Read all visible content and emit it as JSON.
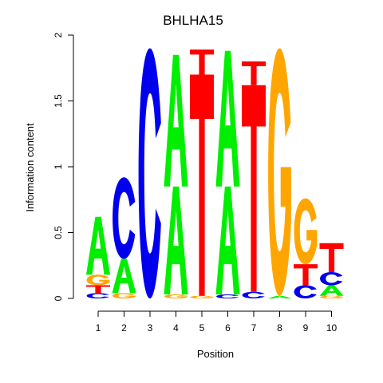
{
  "chart_data": {
    "type": "sequence-logo",
    "title": "BHLHA15",
    "xlabel": "Position",
    "ylabel": "Information content",
    "ylim": [
      0,
      2
    ],
    "y_ticks": [
      "0",
      "0.5",
      "1",
      "1.5",
      "2"
    ],
    "positions": [
      "1",
      "2",
      "3",
      "4",
      "5",
      "6",
      "7",
      "8",
      "9",
      "10"
    ],
    "colors": {
      "A": "#00ee00",
      "C": "#0000ee",
      "G": "#ffa500",
      "T": "#ff0000"
    },
    "stacks": [
      [
        {
          "letter": "C",
          "height": 0.04
        },
        {
          "letter": "T",
          "height": 0.06
        },
        {
          "letter": "G",
          "height": 0.08
        },
        {
          "letter": "A",
          "height": 0.44
        }
      ],
      [
        {
          "letter": "G",
          "height": 0.04
        },
        {
          "letter": "A",
          "height": 0.26
        },
        {
          "letter": "C",
          "height": 0.62
        }
      ],
      [
        {
          "letter": "C",
          "height": 1.9
        }
      ],
      [
        {
          "letter": "G",
          "height": 0.03
        },
        {
          "letter": "A",
          "height": 0.82
        },
        {
          "letter": "T",
          "height": 0.0
        },
        {
          "letter": "A",
          "height": 1.0
        }
      ],
      [
        {
          "letter": "G",
          "height": 0.02
        },
        {
          "letter": "T",
          "height": 1.68
        },
        {
          "letter": "T",
          "height": 0.19
        }
      ],
      [
        {
          "letter": "C",
          "height": 0.03
        },
        {
          "letter": "A",
          "height": 0.82
        },
        {
          "letter": "A",
          "height": 1.03
        }
      ],
      [
        {
          "letter": "C",
          "height": 0.05
        },
        {
          "letter": "T",
          "height": 1.57
        },
        {
          "letter": "T",
          "height": 0.18
        }
      ],
      [
        {
          "letter": "A",
          "height": 0.02
        },
        {
          "letter": "G",
          "height": 1.88
        }
      ],
      [
        {
          "letter": "C",
          "height": 0.1
        },
        {
          "letter": "T",
          "height": 0.16
        },
        {
          "letter": "G",
          "height": 0.5
        }
      ],
      [
        {
          "letter": "G",
          "height": 0.02
        },
        {
          "letter": "A",
          "height": 0.08
        },
        {
          "letter": "C",
          "height": 0.1
        },
        {
          "letter": "T",
          "height": 0.22
        }
      ]
    ]
  }
}
